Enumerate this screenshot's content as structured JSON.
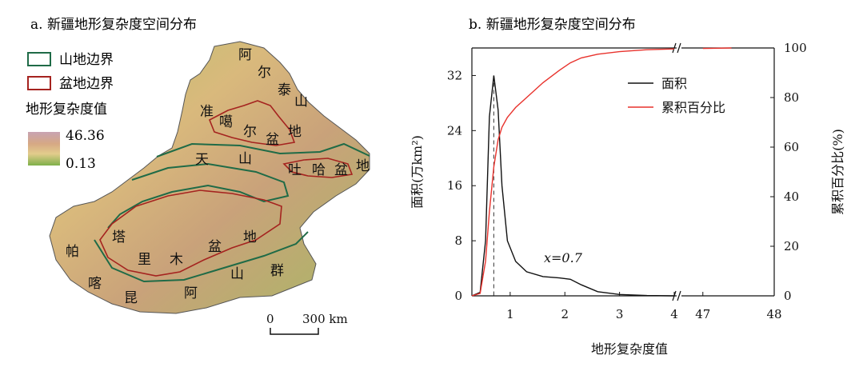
{
  "panel_a": {
    "title": "a. 新疆地形复杂度空间分布",
    "legend": {
      "mountain_boundary": "山地边界",
      "basin_boundary": "盆地边界",
      "value_title": "地形复杂度值",
      "max": "46.36",
      "min": "0.13",
      "colors": {
        "mountain": "#1f6b47",
        "basin": "#a5231f"
      }
    },
    "scale_bar": {
      "zero": "0",
      "dist": "300 km"
    },
    "labels": [
      "阿",
      "尔",
      "泰",
      "山",
      "准",
      "噶",
      "尔",
      "盆",
      "地",
      "天",
      "山",
      "吐",
      "哈",
      "盆",
      "地",
      "塔",
      "里",
      "木",
      "盆",
      "地",
      "帕",
      "喀",
      "昆",
      "阿",
      "山",
      "群"
    ]
  },
  "panel_b": {
    "title": "b. 新疆地形复杂度空间分布",
    "annotation": "x=0.7",
    "chart_data": {
      "type": "line",
      "xlabel": "地形复杂度值",
      "ylabel_left": "面积(万km²)",
      "ylabel_right": "累积百分比(%)",
      "x_ticks": [
        "1",
        "2",
        "3",
        "4",
        "47",
        "48"
      ],
      "y_left_ticks": [
        "0",
        "8",
        "16",
        "24",
        "32"
      ],
      "y_right_ticks": [
        "0",
        "20",
        "40",
        "60",
        "80",
        "100"
      ],
      "ylim_left": [
        0,
        36
      ],
      "ylim_right": [
        0,
        100
      ],
      "x_break": "between 4 and 47",
      "legend_position": "top-right",
      "series": [
        {
          "name": "面积",
          "color": "#111111",
          "axis": "left",
          "x": [
            0.3,
            0.45,
            0.55,
            0.62,
            0.7,
            0.78,
            0.85,
            0.95,
            1.1,
            1.3,
            1.6,
            1.9,
            2.1,
            2.3,
            2.6,
            3.0,
            3.5,
            4.0
          ],
          "values": [
            0,
            0.5,
            8,
            26,
            32,
            27,
            16,
            8,
            5,
            3.5,
            2.8,
            2.6,
            2.4,
            1.6,
            0.6,
            0.2,
            0.05,
            0
          ]
        },
        {
          "name": "累积百分比",
          "color": "#e8322c",
          "axis": "right",
          "x": [
            0.3,
            0.45,
            0.55,
            0.62,
            0.7,
            0.78,
            0.85,
            0.95,
            1.1,
            1.3,
            1.6,
            1.9,
            2.1,
            2.3,
            2.6,
            3.0,
            3.5,
            4.0,
            47.0,
            47.4
          ],
          "values": [
            0,
            1,
            14,
            34,
            52,
            63,
            68,
            72,
            76,
            80,
            86,
            91,
            94,
            96,
            97.5,
            98.5,
            99.3,
            99.6,
            99.8,
            100
          ]
        }
      ]
    }
  }
}
